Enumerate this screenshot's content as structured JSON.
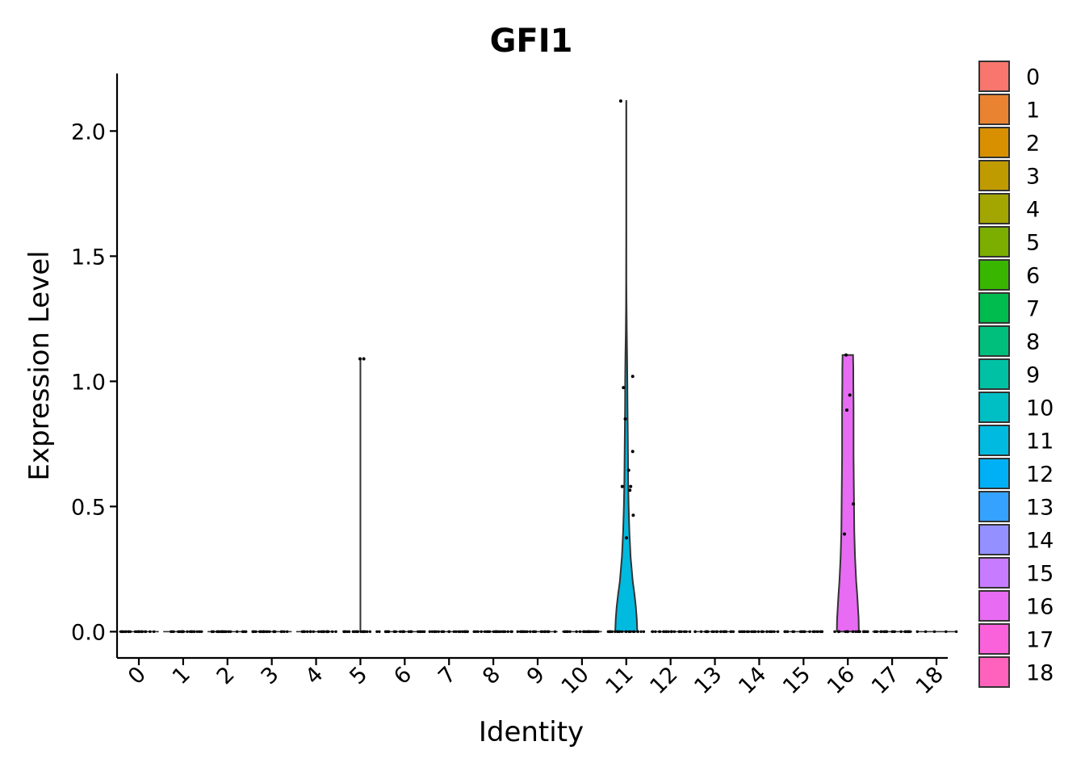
{
  "chart_data": {
    "type": "violin",
    "title": "GFI1",
    "xlabel": "Identity",
    "ylabel": "Expression Level",
    "ylim": [
      -0.105,
      2.23
    ],
    "yticks": [
      0.0,
      0.5,
      1.0,
      1.5,
      2.0
    ],
    "ytick_labels": [
      "0.0",
      "0.5",
      "1.0",
      "1.5",
      "2.0"
    ],
    "categories": [
      "0",
      "1",
      "2",
      "3",
      "4",
      "5",
      "6",
      "7",
      "8",
      "9",
      "10",
      "11",
      "12",
      "13",
      "14",
      "15",
      "16",
      "17",
      "18"
    ],
    "colors": [
      "#F8766D",
      "#EA8331",
      "#D89000",
      "#C09B00",
      "#A3A500",
      "#7CAE00",
      "#39B600",
      "#00BB4E",
      "#00BF7D",
      "#00C1A3",
      "#00BFC4",
      "#00BAE0",
      "#00B0F6",
      "#35A2FF",
      "#9590FF",
      "#C77CFF",
      "#E76BF3",
      "#FA62DB",
      "#FF62BC"
    ],
    "groups": [
      {
        "id": "0",
        "max": 0.0,
        "violin": [],
        "points": []
      },
      {
        "id": "1",
        "max": 0.0,
        "violin": [],
        "points": []
      },
      {
        "id": "2",
        "max": 0.0,
        "violin": [],
        "points": []
      },
      {
        "id": "3",
        "max": 0.0,
        "violin": [],
        "points": []
      },
      {
        "id": "4",
        "max": 0.0,
        "violin": [],
        "points": []
      },
      {
        "id": "5",
        "max": 1.09,
        "violin": [],
        "points": [
          {
            "x": -0.02,
            "y": 1.09
          },
          {
            "x": 0.17,
            "y": 1.09
          }
        ]
      },
      {
        "id": "6",
        "max": 0.0,
        "violin": [],
        "points": []
      },
      {
        "id": "7",
        "max": 0.0,
        "violin": [],
        "points": []
      },
      {
        "id": "8",
        "max": 0.0,
        "violin": [],
        "points": []
      },
      {
        "id": "9",
        "max": 0.0,
        "violin": [],
        "points": []
      },
      {
        "id": "10",
        "max": 0.0,
        "violin": [],
        "points": []
      },
      {
        "id": "11",
        "max": 2.12,
        "violin": [
          [
            0.0,
            0.46
          ],
          [
            0.05,
            0.44
          ],
          [
            0.1,
            0.4
          ],
          [
            0.15,
            0.34
          ],
          [
            0.2,
            0.27
          ],
          [
            0.3,
            0.18
          ],
          [
            0.4,
            0.13
          ],
          [
            0.5,
            0.1
          ],
          [
            0.6,
            0.08
          ],
          [
            0.7,
            0.07
          ],
          [
            0.8,
            0.06
          ],
          [
            0.9,
            0.05
          ],
          [
            1.0,
            0.045
          ],
          [
            1.1,
            0.035
          ],
          [
            1.2,
            0.02
          ],
          [
            1.3,
            0.01
          ],
          [
            1.4,
            0.005
          ],
          [
            1.6,
            0.004
          ],
          [
            2.0,
            0.003
          ],
          [
            2.12,
            0.003
          ]
        ],
        "points": [
          {
            "x": -0.28,
            "y": 2.12
          },
          {
            "x": -0.14,
            "y": 0.975
          },
          {
            "x": -0.05,
            "y": 0.85
          },
          {
            "x": 0.32,
            "y": 1.02
          },
          {
            "x": 0.32,
            "y": 0.72
          },
          {
            "x": 0.12,
            "y": 0.645
          },
          {
            "x": -0.2,
            "y": 0.58
          },
          {
            "x": 0.22,
            "y": 0.58
          },
          {
            "x": 0.18,
            "y": 0.565
          },
          {
            "x": 0.35,
            "y": 0.465
          },
          {
            "x": 0.01,
            "y": 0.375
          }
        ]
      },
      {
        "id": "12",
        "max": 0.0,
        "violin": [],
        "points": []
      },
      {
        "id": "13",
        "max": 0.0,
        "violin": [],
        "points": []
      },
      {
        "id": "14",
        "max": 0.0,
        "violin": [],
        "points": []
      },
      {
        "id": "15",
        "max": 0.0,
        "violin": [],
        "points": []
      },
      {
        "id": "16",
        "max": 1.105,
        "violin": [
          [
            0.0,
            0.46
          ],
          [
            0.05,
            0.45
          ],
          [
            0.1,
            0.42
          ],
          [
            0.15,
            0.39
          ],
          [
            0.2,
            0.35
          ],
          [
            0.3,
            0.3
          ],
          [
            0.4,
            0.27
          ],
          [
            0.5,
            0.26
          ],
          [
            0.6,
            0.25
          ],
          [
            0.7,
            0.24
          ],
          [
            0.8,
            0.24
          ],
          [
            0.9,
            0.24
          ],
          [
            1.0,
            0.23
          ],
          [
            1.05,
            0.23
          ],
          [
            1.105,
            0.22
          ]
        ],
        "points": [
          {
            "x": -0.09,
            "y": 1.105
          },
          {
            "x": 0.1,
            "y": 0.945
          },
          {
            "x": -0.05,
            "y": 0.885
          },
          {
            "x": 0.28,
            "y": 0.51
          },
          {
            "x": -0.17,
            "y": 0.39
          }
        ]
      },
      {
        "id": "17",
        "max": 0.0,
        "violin": [],
        "points": []
      },
      {
        "id": "18",
        "max": 0.0,
        "violin": [],
        "points": []
      }
    ],
    "legend": [
      "0",
      "1",
      "2",
      "3",
      "4",
      "5",
      "6",
      "7",
      "8",
      "9",
      "10",
      "11",
      "12",
      "13",
      "14",
      "15",
      "16",
      "17",
      "18"
    ],
    "legend_position": "right"
  }
}
